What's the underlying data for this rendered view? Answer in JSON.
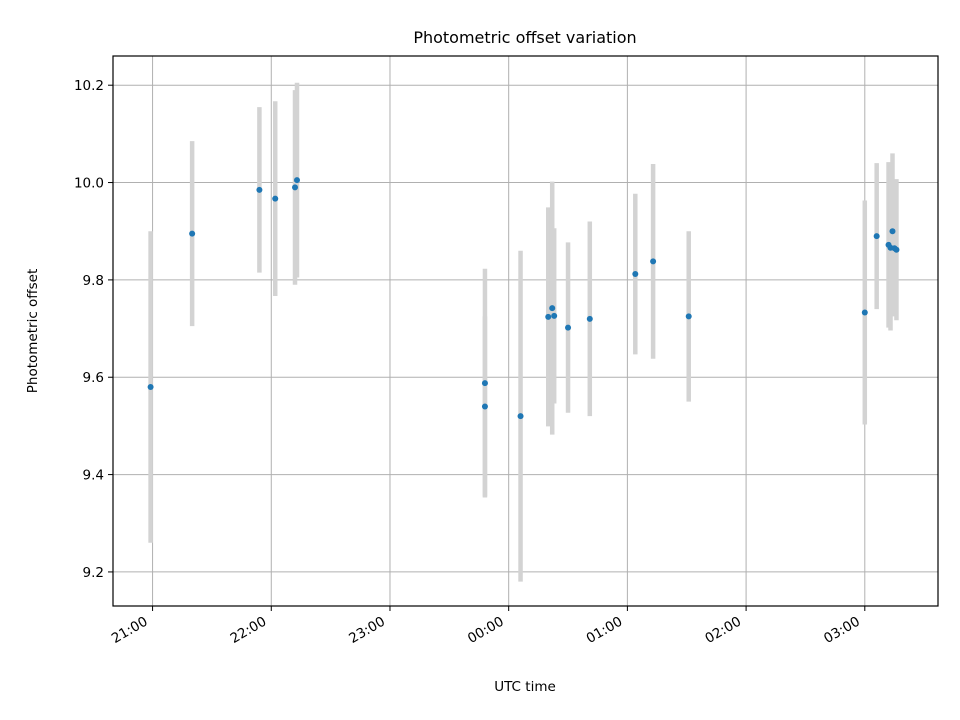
{
  "chart_data": {
    "type": "scatter",
    "title": "Photometric offset variation",
    "xlabel": "UTC time",
    "ylabel": "Photometric offset",
    "x_unit": "UTC hours of day (across midnight)",
    "xlim": [
      "20:40",
      "03:37"
    ],
    "ylim": [
      9.13,
      10.26
    ],
    "xticks": [
      "21:00",
      "22:00",
      "23:00",
      "00:00",
      "01:00",
      "02:00",
      "03:00"
    ],
    "yticks": [
      "9.2",
      "9.4",
      "9.6",
      "9.8",
      "10.0",
      "10.2"
    ],
    "grid": true,
    "legend": "none",
    "marker_color": "#1f77b4",
    "errorbar_color": "#d3d3d3",
    "points": [
      {
        "x": "20:59",
        "y": 9.58,
        "yerr": 0.32
      },
      {
        "x": "21:20",
        "y": 9.895,
        "yerr": 0.19
      },
      {
        "x": "21:54",
        "y": 9.985,
        "yerr": 0.17
      },
      {
        "x": "22:02",
        "y": 9.967,
        "yerr": 0.2
      },
      {
        "x": "22:12",
        "y": 9.99,
        "yerr": 0.2
      },
      {
        "x": "22:13",
        "y": 10.005,
        "yerr": 0.2
      },
      {
        "x": "23:48",
        "y": 9.588,
        "yerr": 0.235
      },
      {
        "x": "23:48",
        "y": 9.54,
        "yerr": 0.185
      },
      {
        "x": "00:06",
        "y": 9.52,
        "yerr": 0.34
      },
      {
        "x": "00:20",
        "y": 9.724,
        "yerr": 0.225
      },
      {
        "x": "00:22",
        "y": 9.742,
        "yerr": 0.26
      },
      {
        "x": "00:23",
        "y": 9.726,
        "yerr": 0.18
      },
      {
        "x": "00:30",
        "y": 9.702,
        "yerr": 0.175
      },
      {
        "x": "00:41",
        "y": 9.72,
        "yerr": 0.2
      },
      {
        "x": "01:04",
        "y": 9.812,
        "yerr": 0.165
      },
      {
        "x": "01:13",
        "y": 9.838,
        "yerr": 0.2
      },
      {
        "x": "01:31",
        "y": 9.725,
        "yerr": 0.175
      },
      {
        "x": "03:00",
        "y": 9.733,
        "yerr": 0.23
      },
      {
        "x": "03:06",
        "y": 9.89,
        "yerr": 0.15
      },
      {
        "x": "03:12",
        "y": 9.872,
        "yerr": 0.17
      },
      {
        "x": "03:13",
        "y": 9.866,
        "yerr": 0.17
      },
      {
        "x": "03:14",
        "y": 9.9,
        "yerr": 0.16
      },
      {
        "x": "03:15",
        "y": 9.865,
        "yerr": 0.14
      },
      {
        "x": "03:16",
        "y": 9.862,
        "yerr": 0.145
      }
    ]
  }
}
